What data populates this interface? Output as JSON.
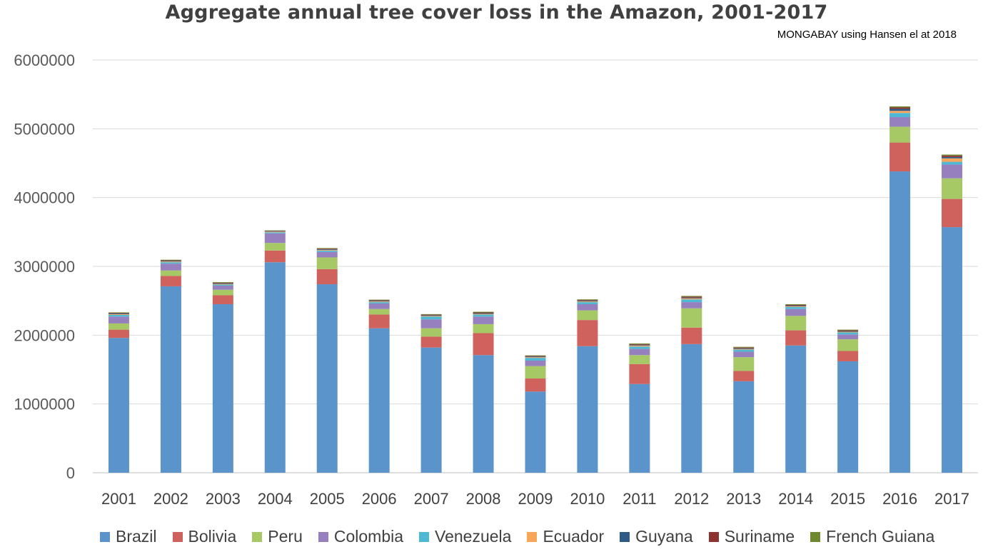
{
  "chart_data": {
    "type": "bar",
    "stacked": true,
    "title": "Aggregate annual tree cover loss in the Amazon, 2001-2017",
    "source": "MONGABAY using Hansen el at 2018",
    "xlabel": "",
    "ylabel": "",
    "ylim": [
      0,
      6000000
    ],
    "yticks": [
      "0",
      "1000000",
      "2000000",
      "3000000",
      "4000000",
      "5000000",
      "6000000"
    ],
    "ytick_values": [
      0,
      1000000,
      2000000,
      3000000,
      4000000,
      5000000,
      6000000
    ],
    "grid": true,
    "legend_position": "bottom",
    "categories": [
      "2001",
      "2002",
      "2003",
      "2004",
      "2005",
      "2006",
      "2007",
      "2008",
      "2009",
      "2010",
      "2011",
      "2012",
      "2013",
      "2014",
      "2015",
      "2016",
      "2017"
    ],
    "series": [
      {
        "name": "Brazil",
        "color": "#5B93CB",
        "values": [
          1960000,
          2710000,
          2450000,
          3060000,
          2740000,
          2100000,
          1820000,
          1710000,
          1180000,
          1840000,
          1290000,
          1870000,
          1330000,
          1850000,
          1620000,
          4380000,
          3570000
        ]
      },
      {
        "name": "Bolivia",
        "color": "#D0625E",
        "values": [
          120000,
          150000,
          130000,
          170000,
          220000,
          200000,
          160000,
          320000,
          190000,
          380000,
          290000,
          240000,
          150000,
          220000,
          150000,
          420000,
          410000
        ]
      },
      {
        "name": "Peru",
        "color": "#A6C965",
        "values": [
          90000,
          80000,
          80000,
          110000,
          170000,
          80000,
          120000,
          130000,
          180000,
          140000,
          130000,
          280000,
          200000,
          210000,
          170000,
          230000,
          300000
        ]
      },
      {
        "name": "Colombia",
        "color": "#9680BE",
        "values": [
          100000,
          100000,
          60000,
          140000,
          80000,
          80000,
          130000,
          110000,
          80000,
          90000,
          90000,
          90000,
          80000,
          100000,
          70000,
          140000,
          200000
        ]
      },
      {
        "name": "Venezuela",
        "color": "#4DB9D4",
        "values": [
          25000,
          20000,
          15000,
          15000,
          20000,
          20000,
          40000,
          30000,
          40000,
          30000,
          35000,
          40000,
          30000,
          30000,
          30000,
          60000,
          40000
        ]
      },
      {
        "name": "Ecuador",
        "color": "#F9A55A",
        "values": [
          10000,
          10000,
          10000,
          10000,
          10000,
          10000,
          10000,
          10000,
          10000,
          10000,
          15000,
          15000,
          10000,
          10000,
          10000,
          30000,
          50000
        ]
      },
      {
        "name": "Guyana",
        "color": "#2F5A85",
        "values": [
          10000,
          10000,
          10000,
          8000,
          10000,
          10000,
          10000,
          10000,
          10000,
          10000,
          10000,
          10000,
          10000,
          10000,
          10000,
          30000,
          20000
        ]
      },
      {
        "name": "Suriname",
        "color": "#8E3330",
        "values": [
          8000,
          8000,
          8000,
          5000,
          8000,
          8000,
          8000,
          10000,
          8000,
          10000,
          10000,
          15000,
          10000,
          10000,
          10000,
          20000,
          20000
        ]
      },
      {
        "name": "French Guiana",
        "color": "#6F8A2E",
        "values": [
          8000,
          8000,
          8000,
          5000,
          8000,
          8000,
          8000,
          10000,
          8000,
          10000,
          10000,
          10000,
          10000,
          10000,
          10000,
          15000,
          15000
        ]
      }
    ]
  }
}
